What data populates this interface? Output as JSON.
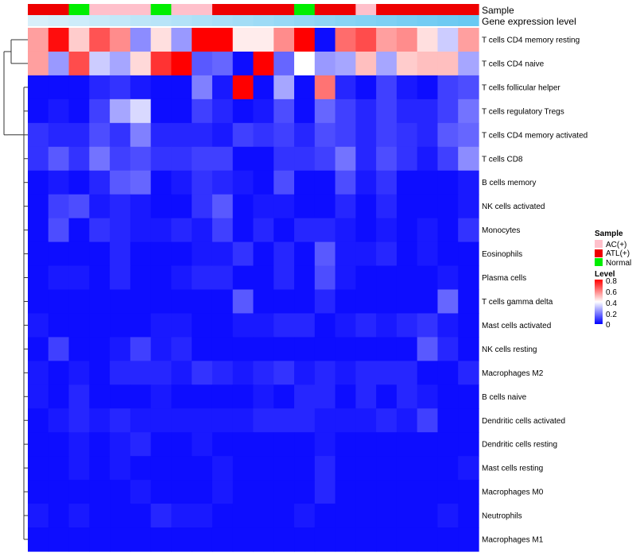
{
  "chart_data": {
    "type": "heatmap",
    "title": "",
    "annotation_rows": [
      "Sample",
      "Gene expression level"
    ],
    "rows": [
      "T cells CD4 memory resting",
      "T cells CD4 naive",
      "T cells follicular helper",
      "T cells regulatory  Tregs",
      "T cells CD4 memory activated",
      "T cells CD8",
      "B cells memory",
      "NK cells activated",
      "Monocytes",
      "Eosinophils",
      "Plasma cells",
      "T cells gamma delta",
      "Mast cells activated",
      "NK cells resting",
      "Macrophages M2",
      "B cells naive",
      "Dendritic cells activated",
      "Dendritic cells resting",
      "Mast cells resting",
      "Macrophages M0",
      "Neutrophils",
      "Macrophages M1"
    ],
    "sample_groups": [
      "ATL(+)",
      "ATL(+)",
      "Normal",
      "AC(+)",
      "AC(+)",
      "AC(+)",
      "Normal",
      "AC(+)",
      "AC(+)",
      "ATL(+)",
      "ATL(+)",
      "ATL(+)",
      "ATL(+)",
      "Normal",
      "ATL(+)",
      "ATL(+)",
      "AC(+)",
      "ATL(+)",
      "ATL(+)",
      "ATL(+)",
      "ATL(+)",
      "ATL(+)"
    ],
    "expression_level": [
      0.06,
      0.1,
      0.14,
      0.18,
      0.22,
      0.26,
      0.3,
      0.34,
      0.38,
      0.42,
      0.46,
      0.5,
      0.54,
      0.58,
      0.62,
      0.66,
      0.7,
      0.74,
      0.78,
      0.82,
      0.86,
      0.9
    ],
    "values": [
      [
        0.55,
        0.78,
        0.48,
        0.67,
        0.58,
        0.22,
        0.45,
        0.24,
        0.8,
        0.8,
        0.43,
        0.43,
        0.58,
        0.8,
        0.02,
        0.63,
        0.68,
        0.55,
        0.58,
        0.45,
        0.32,
        0.55
      ],
      [
        0.55,
        0.24,
        0.68,
        0.32,
        0.26,
        0.46,
        0.72,
        0.8,
        0.14,
        0.16,
        0.02,
        0.8,
        0.16,
        0.4,
        0.24,
        0.26,
        0.5,
        0.26,
        0.48,
        0.5,
        0.5,
        0.26
      ],
      [
        0.02,
        0.02,
        0.02,
        0.06,
        0.08,
        0.04,
        0.02,
        0.02,
        0.2,
        0.04,
        0.8,
        0.02,
        0.26,
        0.02,
        0.62,
        0.06,
        0.02,
        0.1,
        0.04,
        0.02,
        0.1,
        0.12
      ],
      [
        0.02,
        0.04,
        0.02,
        0.1,
        0.26,
        0.34,
        0.02,
        0.02,
        0.1,
        0.06,
        0.02,
        0.04,
        0.12,
        0.02,
        0.16,
        0.1,
        0.06,
        0.1,
        0.06,
        0.06,
        0.1,
        0.18
      ],
      [
        0.08,
        0.06,
        0.06,
        0.12,
        0.08,
        0.2,
        0.06,
        0.06,
        0.06,
        0.04,
        0.1,
        0.08,
        0.1,
        0.06,
        0.12,
        0.1,
        0.06,
        0.1,
        0.08,
        0.06,
        0.14,
        0.16
      ],
      [
        0.08,
        0.14,
        0.08,
        0.18,
        0.1,
        0.12,
        0.08,
        0.08,
        0.1,
        0.1,
        0.02,
        0.02,
        0.08,
        0.08,
        0.1,
        0.18,
        0.06,
        0.12,
        0.08,
        0.04,
        0.1,
        0.22
      ],
      [
        0.02,
        0.04,
        0.02,
        0.06,
        0.14,
        0.16,
        0.02,
        0.04,
        0.08,
        0.06,
        0.04,
        0.02,
        0.12,
        0.02,
        0.02,
        0.12,
        0.04,
        0.08,
        0.02,
        0.02,
        0.02,
        0.04
      ],
      [
        0.02,
        0.1,
        0.12,
        0.04,
        0.06,
        0.04,
        0.02,
        0.02,
        0.08,
        0.14,
        0.02,
        0.04,
        0.04,
        0.02,
        0.02,
        0.06,
        0.02,
        0.06,
        0.02,
        0.02,
        0.02,
        0.04
      ],
      [
        0.02,
        0.12,
        0.02,
        0.08,
        0.06,
        0.04,
        0.04,
        0.06,
        0.04,
        0.1,
        0.02,
        0.06,
        0.02,
        0.06,
        0.06,
        0.04,
        0.02,
        0.04,
        0.02,
        0.04,
        0.02,
        0.08
      ],
      [
        0.02,
        0.02,
        0.02,
        0.02,
        0.06,
        0.02,
        0.02,
        0.02,
        0.04,
        0.04,
        0.08,
        0.02,
        0.06,
        0.02,
        0.14,
        0.04,
        0.04,
        0.06,
        0.02,
        0.04,
        0.02,
        0.02
      ],
      [
        0.02,
        0.04,
        0.04,
        0.02,
        0.06,
        0.02,
        0.02,
        0.04,
        0.06,
        0.06,
        0.02,
        0.02,
        0.06,
        0.02,
        0.12,
        0.04,
        0.02,
        0.02,
        0.02,
        0.02,
        0.04,
        0.02
      ],
      [
        0.02,
        0.02,
        0.02,
        0.02,
        0.02,
        0.02,
        0.02,
        0.02,
        0.02,
        0.02,
        0.14,
        0.02,
        0.02,
        0.02,
        0.06,
        0.02,
        0.02,
        0.02,
        0.02,
        0.02,
        0.16,
        0.02
      ],
      [
        0.04,
        0.02,
        0.02,
        0.02,
        0.02,
        0.02,
        0.04,
        0.04,
        0.02,
        0.02,
        0.04,
        0.04,
        0.06,
        0.06,
        0.02,
        0.04,
        0.06,
        0.04,
        0.06,
        0.08,
        0.04,
        0.02
      ],
      [
        0.02,
        0.1,
        0.02,
        0.02,
        0.04,
        0.1,
        0.04,
        0.06,
        0.02,
        0.02,
        0.02,
        0.02,
        0.02,
        0.02,
        0.02,
        0.02,
        0.02,
        0.02,
        0.02,
        0.14,
        0.06,
        0.02
      ],
      [
        0.04,
        0.02,
        0.04,
        0.02,
        0.06,
        0.06,
        0.06,
        0.04,
        0.08,
        0.06,
        0.04,
        0.06,
        0.08,
        0.04,
        0.06,
        0.04,
        0.06,
        0.06,
        0.06,
        0.02,
        0.02,
        0.06
      ],
      [
        0.04,
        0.02,
        0.06,
        0.02,
        0.02,
        0.02,
        0.04,
        0.02,
        0.02,
        0.02,
        0.02,
        0.04,
        0.02,
        0.06,
        0.06,
        0.02,
        0.06,
        0.02,
        0.06,
        0.04,
        0.02,
        0.02
      ],
      [
        0.02,
        0.04,
        0.06,
        0.04,
        0.06,
        0.04,
        0.04,
        0.04,
        0.04,
        0.04,
        0.04,
        0.06,
        0.06,
        0.06,
        0.04,
        0.04,
        0.04,
        0.06,
        0.04,
        0.1,
        0.02,
        0.02
      ],
      [
        0.02,
        0.02,
        0.04,
        0.02,
        0.04,
        0.06,
        0.02,
        0.02,
        0.04,
        0.02,
        0.02,
        0.02,
        0.02,
        0.02,
        0.04,
        0.02,
        0.02,
        0.02,
        0.02,
        0.02,
        0.02,
        0.02
      ],
      [
        0.02,
        0.02,
        0.04,
        0.02,
        0.04,
        0.02,
        0.02,
        0.02,
        0.02,
        0.04,
        0.02,
        0.02,
        0.02,
        0.02,
        0.06,
        0.02,
        0.02,
        0.02,
        0.02,
        0.02,
        0.02,
        0.04
      ],
      [
        0.02,
        0.02,
        0.02,
        0.02,
        0.02,
        0.04,
        0.02,
        0.02,
        0.02,
        0.04,
        0.02,
        0.02,
        0.02,
        0.02,
        0.06,
        0.02,
        0.02,
        0.02,
        0.02,
        0.02,
        0.02,
        0.02
      ],
      [
        0.04,
        0.02,
        0.04,
        0.02,
        0.02,
        0.02,
        0.06,
        0.04,
        0.04,
        0.02,
        0.02,
        0.02,
        0.02,
        0.04,
        0.02,
        0.02,
        0.02,
        0.02,
        0.02,
        0.02,
        0.04,
        0.02
      ],
      [
        0.02,
        0.02,
        0.02,
        0.02,
        0.02,
        0.02,
        0.02,
        0.02,
        0.02,
        0.02,
        0.02,
        0.02,
        0.02,
        0.02,
        0.02,
        0.02,
        0.02,
        0.02,
        0.02,
        0.02,
        0.02,
        0.02
      ]
    ],
    "legend_sample": {
      "title": "Sample",
      "entries": [
        {
          "label": "AC(+)",
          "color": "#FFC0CB"
        },
        {
          "label": "ATL(+)",
          "color": "#EE0000"
        },
        {
          "label": "Normal",
          "color": "#00EE00"
        }
      ]
    },
    "legend_level": {
      "title": "Level",
      "ticks": [
        "0.8",
        "0.6",
        "0.4",
        "0.2",
        "0"
      ],
      "range": [
        0,
        0.8
      ]
    },
    "color_scale": {
      "low": "#0000FF",
      "mid": "#FFFFFF",
      "high": "#FF0000",
      "min": 0,
      "mid_value": 0.4,
      "max": 0.8
    },
    "expression_colors": {
      "low": "#E0F2FB",
      "high": "#5BC4F1"
    }
  }
}
